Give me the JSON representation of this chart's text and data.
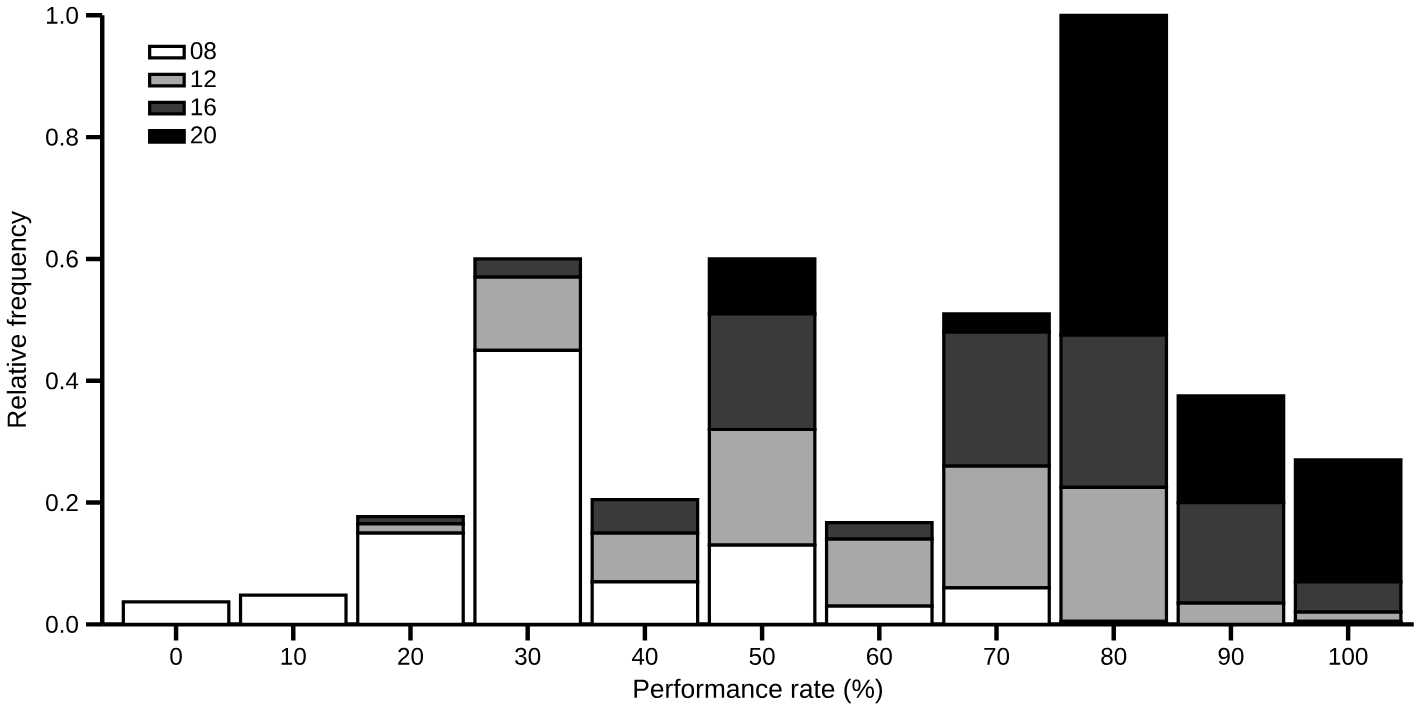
{
  "chart_data": {
    "type": "bar",
    "stacked": true,
    "xlabel": "Performance rate (%)",
    "ylabel": "Relative frequency",
    "categories": [
      "0",
      "10",
      "20",
      "30",
      "40",
      "50",
      "60",
      "70",
      "80",
      "90",
      "100"
    ],
    "series": [
      {
        "name": "08",
        "color": "#ffffff",
        "values": [
          0.037,
          0.048,
          0.15,
          0.45,
          0.07,
          0.13,
          0.03,
          0.06,
          0.005,
          0,
          0.005
        ]
      },
      {
        "name": "12",
        "color": "#a8a8a8",
        "values": [
          0,
          0,
          0.015,
          0.12,
          0.08,
          0.19,
          0.11,
          0.2,
          0.22,
          0.035,
          0.015
        ]
      },
      {
        "name": "16",
        "color": "#3a3a3a",
        "values": [
          0,
          0,
          0.012,
          0.03,
          0.055,
          0.19,
          0.027,
          0.22,
          0.25,
          0.165,
          0.05
        ]
      },
      {
        "name": "20",
        "color": "#000000",
        "values": [
          0,
          0,
          0,
          0,
          0,
          0.09,
          0,
          0.03,
          0.525,
          0.175,
          0.2
        ]
      }
    ],
    "ylim": [
      0,
      1.0
    ],
    "yticks": [
      {
        "value": 0,
        "label": "0.0"
      },
      {
        "value": 0.2,
        "label": "0.2"
      },
      {
        "value": 0.4,
        "label": "0.4"
      },
      {
        "value": 0.6,
        "label": "0.6"
      },
      {
        "value": 0.8,
        "label": "0.8"
      },
      {
        "value": 1.0,
        "label": "1.0"
      }
    ],
    "legend": "top left",
    "grid": false
  }
}
